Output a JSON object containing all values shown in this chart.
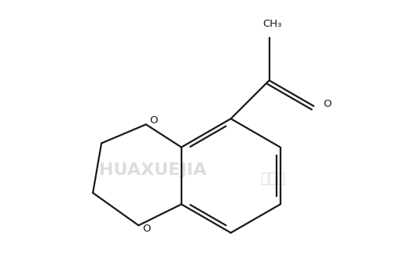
{
  "bg_color": "#ffffff",
  "line_color": "#1a1a1a",
  "watermark_color": "#d8d8d8",
  "lw": 1.6,
  "font_size_ch3": 9.5,
  "font_size_o": 9.5,
  "font_size_watermark": 16,
  "watermark_text1": "HUAXUEJIA",
  "watermark_text2": "化学加",
  "ch3_label": "CH₃",
  "o_label": "O",
  "figsize": [
    5.32,
    3.3
  ],
  "dpi": 100
}
